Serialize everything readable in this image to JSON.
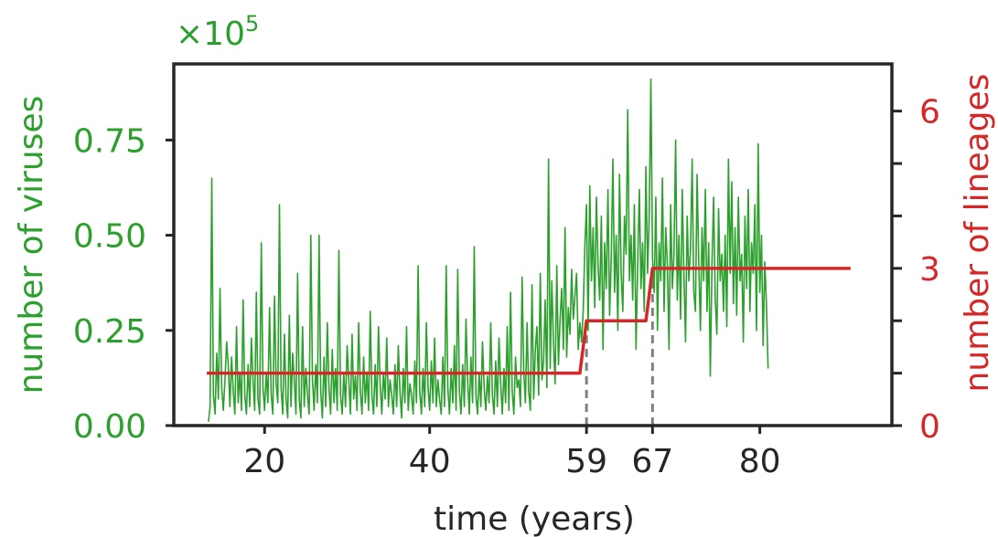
{
  "chart_data": {
    "type": "line",
    "xlabel": "time (years)",
    "ylabel_left": "number of viruses",
    "ylabel_right": "number of lineages",
    "left_axis_multiplier_base": "×10",
    "left_axis_multiplier_exponent": "5",
    "xlim": [
      9,
      96
    ],
    "ylim_left": [
      0,
      0.95
    ],
    "ylim_right": [
      0,
      6.9
    ],
    "x_ticks": [
      20,
      40,
      59,
      67,
      80
    ],
    "x_tick_labels": [
      "20",
      "40",
      "59",
      "67",
      "80"
    ],
    "y_left_ticks": [
      0.0,
      0.25,
      0.5,
      0.75
    ],
    "y_left_tick_labels": [
      "0.00",
      "0.25",
      "0.50",
      "0.75"
    ],
    "y_right_major_ticks": [
      0,
      3,
      6
    ],
    "y_right_tick_labels": [
      "0",
      "3",
      "6"
    ],
    "y_right_minor_ticks": [
      1,
      2,
      4,
      5
    ],
    "vlines": [
      59,
      67
    ],
    "grid": false,
    "colors": {
      "viruses": "#2ca02c",
      "lineages": "#d62728",
      "axes": "#262626",
      "vline": "#808080"
    },
    "series": [
      {
        "axis": "left",
        "x_start": 13.2,
        "x_step": 0.2,
        "values": [
          0.01,
          0.05,
          0.65,
          0.08,
          0.03,
          0.19,
          0.07,
          0.36,
          0.1,
          0.04,
          0.12,
          0.22,
          0.16,
          0.05,
          0.18,
          0.09,
          0.03,
          0.26,
          0.06,
          0.14,
          0.04,
          0.33,
          0.08,
          0.03,
          0.16,
          0.05,
          0.23,
          0.12,
          0.04,
          0.35,
          0.07,
          0.03,
          0.48,
          0.1,
          0.04,
          0.14,
          0.06,
          0.31,
          0.08,
          0.03,
          0.34,
          0.11,
          0.06,
          0.58,
          0.1,
          0.03,
          0.24,
          0.07,
          0.02,
          0.29,
          0.05,
          0.19,
          0.12,
          0.03,
          0.4,
          0.07,
          0.02,
          0.26,
          0.05,
          0.15,
          0.08,
          0.03,
          0.5,
          0.12,
          0.04,
          0.16,
          0.06,
          0.5,
          0.09,
          0.02,
          0.18,
          0.05,
          0.27,
          0.1,
          0.03,
          0.2,
          0.06,
          0.15,
          0.04,
          0.46,
          0.08,
          0.03,
          0.14,
          0.05,
          0.21,
          0.12,
          0.03,
          0.24,
          0.07,
          0.13,
          0.04,
          0.27,
          0.09,
          0.03,
          0.18,
          0.06,
          0.14,
          0.04,
          0.3,
          0.08,
          0.03,
          0.16,
          0.05,
          0.26,
          0.11,
          0.03,
          0.14,
          0.07,
          0.23,
          0.05,
          0.12,
          0.08,
          0.03,
          0.16,
          0.05,
          0.21,
          0.09,
          0.02,
          0.15,
          0.06,
          0.26,
          0.04,
          0.11,
          0.08,
          0.03,
          0.17,
          0.06,
          0.42,
          0.09,
          0.03,
          0.15,
          0.05,
          0.27,
          0.1,
          0.04,
          0.17,
          0.06,
          0.23,
          0.05,
          0.12,
          0.07,
          0.03,
          0.18,
          0.05,
          0.42,
          0.1,
          0.03,
          0.15,
          0.06,
          0.21,
          0.04,
          0.41,
          0.09,
          0.03,
          0.16,
          0.05,
          0.28,
          0.12,
          0.03,
          0.18,
          0.06,
          0.47,
          0.08,
          0.03,
          0.14,
          0.05,
          0.22,
          0.1,
          0.04,
          0.13,
          0.06,
          0.27,
          0.08,
          0.03,
          0.17,
          0.05,
          0.23,
          0.11,
          0.03,
          0.15,
          0.06,
          0.26,
          0.04,
          0.35,
          0.09,
          0.03,
          0.18,
          0.1,
          0.12,
          0.05,
          0.39,
          0.14,
          0.06,
          0.27,
          0.09,
          0.04,
          0.37,
          0.07,
          0.2,
          0.26,
          0.08,
          0.4,
          0.12,
          0.17,
          0.33,
          0.1,
          0.7,
          0.15,
          0.38,
          0.22,
          0.11,
          0.42,
          0.16,
          0.28,
          0.36,
          0.2,
          0.52,
          0.18,
          0.31,
          0.24,
          0.41,
          0.28,
          0.34,
          0.4,
          0.2,
          0.27,
          0.22,
          0.3,
          0.47,
          0.58,
          0.25,
          0.63,
          0.38,
          0.52,
          0.31,
          0.6,
          0.42,
          0.33,
          0.55,
          0.2,
          0.48,
          0.36,
          0.62,
          0.29,
          0.44,
          0.7,
          0.35,
          0.5,
          0.25,
          0.66,
          0.4,
          0.3,
          0.55,
          0.45,
          0.83,
          0.38,
          0.5,
          0.33,
          0.58,
          0.2,
          0.42,
          0.62,
          0.36,
          0.48,
          0.3,
          0.68,
          0.4,
          0.55,
          0.91,
          0.44,
          0.35,
          0.6,
          0.25,
          0.48,
          0.38,
          0.65,
          0.3,
          0.52,
          0.42,
          0.2,
          0.58,
          0.36,
          0.45,
          0.75,
          0.33,
          0.5,
          0.28,
          0.62,
          0.4,
          0.22,
          0.55,
          0.38,
          0.46,
          0.7,
          0.35,
          0.3,
          0.66,
          0.43,
          0.25,
          0.52,
          0.38,
          0.62,
          0.3,
          0.48,
          0.13,
          0.42,
          0.6,
          0.33,
          0.24,
          0.57,
          0.38,
          0.45,
          0.3,
          0.5,
          0.26,
          0.7,
          0.4,
          0.64,
          0.32,
          0.52,
          0.29,
          0.6,
          0.38,
          0.45,
          0.22,
          0.55,
          0.36,
          0.62,
          0.3,
          0.48,
          0.4,
          0.58,
          0.25,
          0.74,
          0.35,
          0.5,
          0.21,
          0.43,
          0.32,
          0.15
        ]
      },
      {
        "axis": "right",
        "points": [
          [
            13.0,
            1
          ],
          [
            58.2,
            1
          ],
          [
            59.0,
            2
          ],
          [
            66.2,
            2
          ],
          [
            67.0,
            3
          ],
          [
            91.0,
            3
          ]
        ]
      }
    ]
  }
}
